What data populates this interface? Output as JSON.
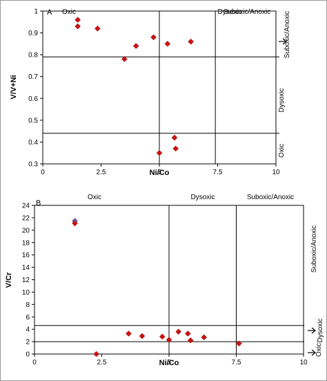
{
  "chart_data": [
    {
      "panel_label": "A",
      "type": "scatter",
      "xlabel": "Ni/Co",
      "ylabel": "V/V+Ni",
      "xlim": [
        0,
        10
      ],
      "ylim": [
        0.3,
        1
      ],
      "x_ticks": [
        "0",
        "2.5",
        "5",
        "7.5",
        "10"
      ],
      "y_ticks": [
        "0.3",
        "0.4",
        "0.5",
        "0.6",
        "0.7",
        "0.8",
        "0.9",
        "1"
      ],
      "points": [
        {
          "x": 1.5,
          "y": 0.96
        },
        {
          "x": 1.5,
          "y": 0.93
        },
        {
          "x": 2.35,
          "y": 0.92
        },
        {
          "x": 3.5,
          "y": 0.78
        },
        {
          "x": 4.0,
          "y": 0.84
        },
        {
          "x": 4.75,
          "y": 0.88
        },
        {
          "x": 5.35,
          "y": 0.85
        },
        {
          "x": 6.35,
          "y": 0.86
        },
        {
          "x": 5.65,
          "y": 0.42
        },
        {
          "x": 5.7,
          "y": 0.37
        },
        {
          "x": 5.0,
          "y": 0.35
        }
      ],
      "marker_color": "#cc1111",
      "vlines": [
        5,
        7.4
      ],
      "hlines": [
        0.79,
        0.44
      ],
      "top_zones": [
        "Oxic",
        "Dysoxic",
        "Suboxic/Anoxic"
      ],
      "side_zones": [
        "Suboxic/Anoxic",
        "Dysoxic",
        "Oxic"
      ],
      "grid": false,
      "legend": "none"
    },
    {
      "panel_label": "B",
      "type": "scatter",
      "xlabel": "Ni/Co",
      "ylabel": "V/Cr",
      "xlim": [
        0,
        10
      ],
      "ylim": [
        0,
        24
      ],
      "x_ticks": [
        "0",
        "2.5",
        "5",
        "7.5",
        "10"
      ],
      "y_ticks": [
        "0",
        "2",
        "4",
        "6",
        "8",
        "10",
        "12",
        "14",
        "16",
        "18",
        "20",
        "22",
        "24"
      ],
      "points": [
        {
          "x": 1.5,
          "y": 21.5
        },
        {
          "x": 1.5,
          "y": 21.1
        },
        {
          "x": 2.3,
          "y": 0.0
        },
        {
          "x": 3.5,
          "y": 3.3
        },
        {
          "x": 4.0,
          "y": 2.9
        },
        {
          "x": 4.75,
          "y": 2.8
        },
        {
          "x": 5.0,
          "y": 2.3
        },
        {
          "x": 5.35,
          "y": 3.6
        },
        {
          "x": 5.7,
          "y": 3.3
        },
        {
          "x": 5.8,
          "y": 2.2
        },
        {
          "x": 6.3,
          "y": 2.7
        },
        {
          "x": 7.6,
          "y": 1.7
        }
      ],
      "marker_color": "#cc1111",
      "marker_color_alt": "#5b6fb8",
      "vlines": [
        5,
        7.5
      ],
      "hlines": [
        4.6,
        2.0
      ],
      "top_zones": [
        "Oxic",
        "Dysoxic",
        "Suboxic/Anoxic"
      ],
      "side_zones": [
        "Suboxic/Anoxic",
        "Dysoxic",
        "Oxic"
      ],
      "grid": false,
      "legend": "none"
    }
  ]
}
